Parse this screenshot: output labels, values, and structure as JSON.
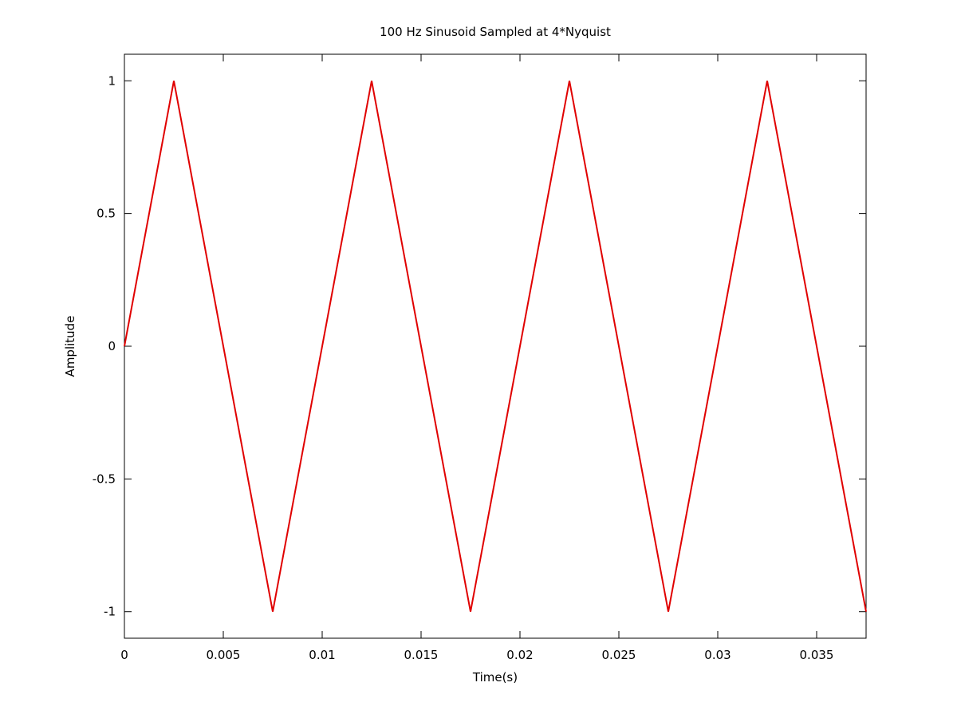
{
  "chart_data": {
    "type": "line",
    "title": "100 Hz Sinusoid Sampled at 4*Nyquist",
    "xlabel": "Time(s)",
    "ylabel": "Amplitude",
    "xlim": [
      0,
      0.0375
    ],
    "ylim": [
      -1.1,
      1.1
    ],
    "grid": false,
    "legend": "none",
    "x_ticks": [
      {
        "value": 0,
        "label": "0"
      },
      {
        "value": 0.005,
        "label": "0.005"
      },
      {
        "value": 0.01,
        "label": "0.01"
      },
      {
        "value": 0.015,
        "label": "0.015"
      },
      {
        "value": 0.02,
        "label": "0.02"
      },
      {
        "value": 0.025,
        "label": "0.025"
      },
      {
        "value": 0.03,
        "label": "0.03"
      },
      {
        "value": 0.035,
        "label": "0.035"
      }
    ],
    "y_ticks": [
      {
        "value": 1,
        "label": "1"
      },
      {
        "value": 0.5,
        "label": "0.5"
      },
      {
        "value": 0,
        "label": "0"
      },
      {
        "value": -0.5,
        "label": "-0.5"
      },
      {
        "value": -1,
        "label": "-1"
      }
    ],
    "series": [
      {
        "color": "#e00000",
        "x": [
          0,
          0.0025,
          0.0075,
          0.0125,
          0.0175,
          0.0225,
          0.0275,
          0.0325,
          0.0375
        ],
        "y": [
          0,
          1,
          -1,
          1,
          -1,
          1,
          -1,
          1,
          -1
        ]
      }
    ]
  }
}
